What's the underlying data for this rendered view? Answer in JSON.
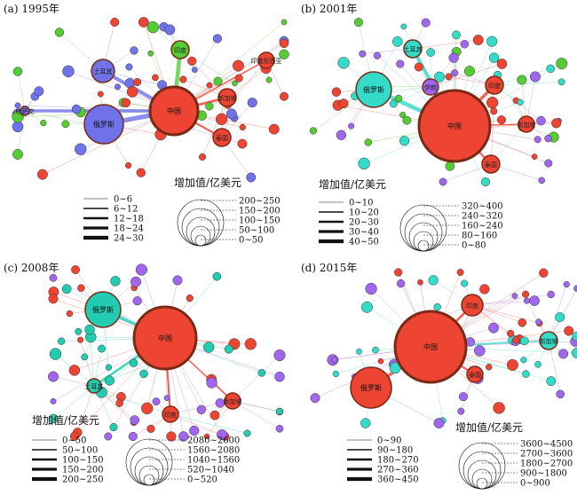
{
  "colors": {
    "blue": "#6f72e8",
    "green": "#55cc33",
    "red": "#ee4433",
    "cyan": "#33dbc8",
    "purple": "#a066ee",
    "teal": "#22ccb0"
  },
  "panels": [
    {
      "id": "a",
      "title": "(a) 1995年",
      "legend_value_title": "增加值/亿美元",
      "edge_ranges": [
        "0~6",
        "6~12",
        "12~18",
        "18~24",
        "24~30"
      ],
      "size_ranges": [
        "200~250",
        "150~200",
        "100~150",
        "50~100",
        "0~50"
      ],
      "hubs": [
        {
          "label": "中国",
          "color": "red"
        },
        {
          "label": "俄罗斯",
          "color": "blue"
        },
        {
          "label": "印度",
          "color": "green"
        },
        {
          "label": "土耳其",
          "color": "blue"
        },
        {
          "label": "哈萨克",
          "color": "blue"
        },
        {
          "label": "新加坡",
          "color": "red"
        },
        {
          "label": "泰国",
          "color": "red"
        },
        {
          "label": "印度尼西亚",
          "color": "red"
        }
      ]
    },
    {
      "id": "b",
      "title": "(b) 2001年",
      "legend_value_title": "增加值/亿美元",
      "edge_ranges": [
        "0~10",
        "10~20",
        "20~30",
        "30~40",
        "40~50"
      ],
      "size_ranges": [
        "320~400",
        "240~320",
        "160~240",
        "80~160",
        "0~80"
      ],
      "hubs": [
        {
          "label": "中国",
          "color": "red"
        },
        {
          "label": "俄罗斯",
          "color": "cyan"
        },
        {
          "label": "土耳其",
          "color": "cyan"
        },
        {
          "label": "印度",
          "color": "red"
        },
        {
          "label": "伊朗",
          "color": "purple"
        },
        {
          "label": "泰国",
          "color": "red"
        },
        {
          "label": "新加坡",
          "color": "red"
        }
      ]
    },
    {
      "id": "c",
      "title": "(c) 2008年",
      "legend_value_title": "增加值/亿美元",
      "edge_ranges": [
        "0~50",
        "50~100",
        "100~150",
        "150~200",
        "200~250"
      ],
      "size_ranges": [
        "2080~2600",
        "1560~2080",
        "1040~1560",
        "520~1040",
        "0~520"
      ],
      "hubs": [
        {
          "label": "中国",
          "color": "red"
        },
        {
          "label": "俄罗斯",
          "color": "teal"
        },
        {
          "label": "土耳其",
          "color": "teal"
        },
        {
          "label": "印度",
          "color": "red"
        },
        {
          "label": "新加坡",
          "color": "red"
        }
      ]
    },
    {
      "id": "d",
      "title": "(d) 2015年",
      "legend_value_title": "增加值/亿美元",
      "edge_ranges": [
        "0~90",
        "90~180",
        "180~270",
        "270~360",
        "360~450"
      ],
      "size_ranges": [
        "3600~4500",
        "2700~3600",
        "1800~2700",
        "900~1800",
        "0~900"
      ],
      "hubs": [
        {
          "label": "中国",
          "color": "red"
        },
        {
          "label": "俄罗斯",
          "color": "red"
        },
        {
          "label": "印度",
          "color": "red"
        },
        {
          "label": "泰国",
          "color": "red"
        },
        {
          "label": "新加坡",
          "color": "cyan"
        }
      ]
    }
  ]
}
